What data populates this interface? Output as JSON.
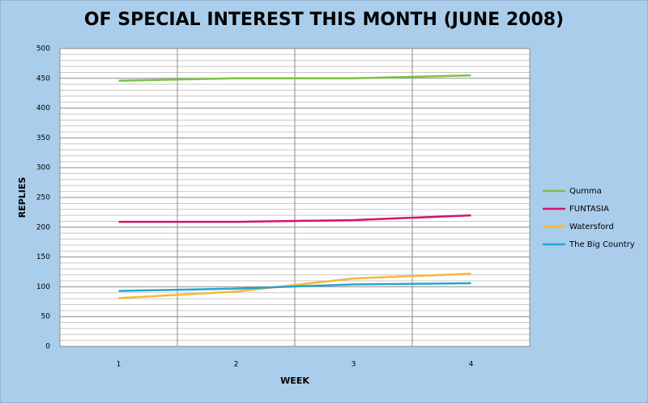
{
  "chart_data": {
    "type": "line",
    "title": "OF SPECIAL INTEREST THIS MONTH (JUNE 2008)",
    "x_label": "WEEK",
    "y_label": "REPLIES",
    "categories": [
      "1",
      "2",
      "3",
      "4"
    ],
    "series": [
      {
        "name": "Qumma",
        "color": "#7cc142",
        "values": [
          446,
          450,
          450,
          455
        ]
      },
      {
        "name": "FUNTASIA",
        "color": "#d4136b",
        "values": [
          209,
          209,
          212,
          220
        ]
      },
      {
        "name": "Watersford",
        "color": "#f5b83a",
        "values": [
          81,
          92,
          114,
          122
        ]
      },
      {
        "name": "The Big Country",
        "color": "#25a4cf",
        "values": [
          93,
          97,
          104,
          106
        ]
      }
    ],
    "ylim": [
      0,
      500
    ],
    "yticks": [
      0,
      50,
      100,
      150,
      200,
      250,
      300,
      350,
      400,
      450,
      500
    ],
    "yminorticks": [
      10,
      20,
      30,
      40,
      60,
      70,
      80,
      90,
      110,
      120,
      130,
      140,
      160,
      170,
      180,
      190,
      210,
      220,
      230,
      240,
      260,
      270,
      280,
      290,
      310,
      320,
      330,
      340,
      360,
      370,
      380,
      390,
      410,
      420,
      430,
      440,
      460,
      470,
      480,
      490
    ],
    "grid": true,
    "legend": "right"
  }
}
